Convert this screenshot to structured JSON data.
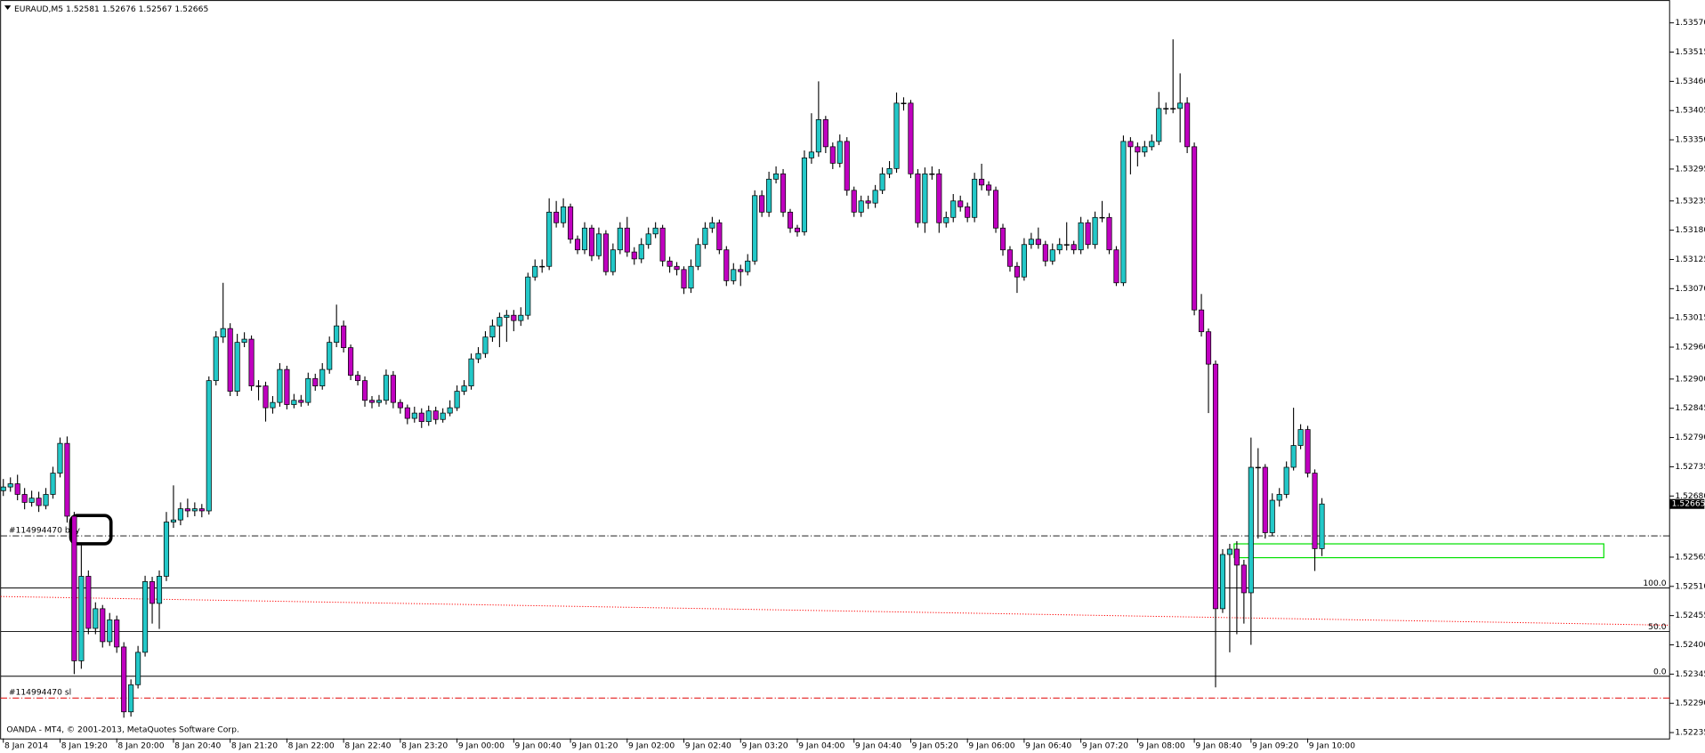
{
  "header": {
    "symbol": "EURAUD,M5"
  },
  "chart_data": {
    "type": "candlestick",
    "categories": [
      "8 Jan 2014",
      null,
      null,
      null,
      null,
      null,
      null,
      null,
      "8 Jan 19:20",
      null,
      null,
      null,
      null,
      null,
      null,
      null,
      "8 Jan 20:00",
      null,
      null,
      null,
      null,
      null,
      null,
      null,
      "8 Jan 20:40",
      null,
      null,
      null,
      null,
      null,
      null,
      null,
      "8 Jan 21:20",
      null,
      null,
      null,
      null,
      null,
      null,
      null,
      "8 Jan 22:00",
      null,
      null,
      null,
      null,
      null,
      null,
      null,
      "8 Jan 22:40",
      null,
      null,
      null,
      null,
      null,
      null,
      null,
      "8 Jan 23:20",
      null,
      null,
      null,
      null,
      null,
      null,
      null,
      "9 Jan 00:00",
      null,
      null,
      null,
      null,
      null,
      null,
      null,
      "9 Jan 00:40",
      null,
      null,
      null,
      null,
      null,
      null,
      null,
      "9 Jan 01:20",
      null,
      null,
      null,
      null,
      null,
      null,
      null,
      "9 Jan 02:00",
      null,
      null,
      null,
      null,
      null,
      null,
      null,
      "9 Jan 02:40",
      null,
      null,
      null,
      null,
      null,
      null,
      null,
      "9 Jan 03:20",
      null,
      null,
      null,
      null,
      null,
      null,
      null,
      "9 Jan 04:00",
      null,
      null,
      null,
      null,
      null,
      null,
      null,
      "9 Jan 04:40",
      null,
      null,
      null,
      null,
      null,
      null,
      null,
      "9 Jan 05:20",
      null,
      null,
      null,
      null,
      null,
      null,
      null,
      "9 Jan 06:00",
      null,
      null,
      null,
      null,
      null,
      null,
      null,
      "9 Jan 06:40",
      null,
      null,
      null,
      null,
      null,
      null,
      null,
      "9 Jan 07:20",
      null,
      null,
      null,
      null,
      null,
      null,
      null,
      "9 Jan 08:00",
      null,
      null,
      null,
      null,
      null,
      null,
      null,
      "9 Jan 08:40",
      null,
      null,
      null,
      null,
      null,
      null,
      null,
      "9 Jan 09:20",
      null,
      null,
      null,
      null,
      null,
      null,
      null,
      "9 Jan 10:00",
      null,
      null
    ],
    "open": [
      1.5269,
      1.52697,
      1.52703,
      1.52683,
      1.52668,
      1.52676,
      1.52662,
      1.52683,
      1.52723,
      1.52779,
      1.52642,
      1.5237,
      1.52529,
      1.52431,
      1.52468,
      1.52406,
      1.52447,
      1.52396,
      1.52274,
      1.52325,
      1.52386,
      1.52519,
      1.52478,
      1.52529,
      1.52631,
      1.52635,
      1.52656,
      1.52652,
      1.52656,
      1.52652,
      1.52897,
      1.52979,
      1.52995,
      1.52877,
      1.52969,
      1.52975,
      1.52887,
      1.52887,
      1.52846,
      1.52856,
      1.52918,
      1.52852,
      1.5286,
      1.52856,
      1.52901,
      1.52887,
      1.52918,
      1.52969,
      1.53,
      1.52959,
      1.52907,
      1.52897,
      1.5286,
      1.52856,
      1.5286,
      1.52907,
      1.52856,
      1.52846,
      1.52826,
      1.52836,
      1.5282,
      1.5284,
      1.52824,
      1.52836,
      1.52846,
      1.52877,
      1.52887,
      1.52938,
      1.52948,
      1.52979,
      1.53,
      1.53016,
      1.5302,
      1.5301,
      1.5302,
      1.53092,
      1.53112,
      1.53112,
      1.53214,
      1.53194,
      1.53224,
      1.53163,
      1.53143,
      1.53184,
      1.53132,
      1.53173,
      1.53102,
      1.53143,
      1.53184,
      1.53139,
      1.53126,
      1.53153,
      1.53173,
      1.53184,
      1.53122,
      1.53112,
      1.53106,
      1.53071,
      1.53112,
      1.53153,
      1.53184,
      1.53194,
      1.53143,
      1.53085,
      1.53106,
      1.53102,
      1.53122,
      1.53245,
      1.53214,
      1.53276,
      1.53286,
      1.53214,
      1.53184,
      1.53177,
      1.53316,
      1.53327,
      1.53388,
      1.53337,
      1.53306,
      1.53347,
      1.53255,
      1.53214,
      1.53235,
      1.53231,
      1.53255,
      1.53286,
      1.53296,
      1.53419,
      1.53419,
      1.53286,
      1.53194,
      1.53286,
      1.53286,
      1.53194,
      1.53204,
      1.53235,
      1.53224,
      1.53204,
      1.53276,
      1.53265,
      1.53255,
      1.53184,
      1.53143,
      1.53112,
      1.53092,
      1.53153,
      1.53163,
      1.53153,
      1.53122,
      1.53143,
      1.53153,
      1.53153,
      1.53143,
      1.53194,
      1.53153,
      1.53204,
      1.53204,
      1.53143,
      1.53081,
      1.53347,
      1.53337,
      1.53327,
      1.53337,
      1.53347,
      1.53409,
      1.53409,
      1.53409,
      1.53419,
      1.53337,
      1.5303,
      1.52989,
      1.52928,
      1.52468,
      1.5257,
      1.5258,
      1.5255,
      1.52498,
      1.52734,
      1.52734,
      1.52611,
      1.52672,
      1.52683,
      1.52734,
      1.52775,
      1.52805,
      1.52723,
      1.52581
    ],
    "high": [
      1.52712,
      1.52715,
      1.5272,
      1.52695,
      1.5269,
      1.52688,
      1.52695,
      1.52735,
      1.5279,
      1.52792,
      1.5265,
      1.52591,
      1.5254,
      1.5248,
      1.52475,
      1.5246,
      1.52455,
      1.52405,
      1.52335,
      1.52398,
      1.5253,
      1.52528,
      1.5254,
      1.5265,
      1.527,
      1.52668,
      1.52675,
      1.52668,
      1.52665,
      1.52905,
      1.5299,
      1.53081,
      1.53005,
      1.52985,
      1.52988,
      1.52982,
      1.52898,
      1.52895,
      1.52868,
      1.5293,
      1.52925,
      1.52872,
      1.5287,
      1.52912,
      1.5291,
      1.5293,
      1.5298,
      1.5304,
      1.5301,
      1.52965,
      1.52915,
      1.52905,
      1.52868,
      1.5287,
      1.52918,
      1.52915,
      1.52862,
      1.52852,
      1.52848,
      1.52845,
      1.5285,
      1.52848,
      1.52845,
      1.5286,
      1.52888,
      1.52898,
      1.52948,
      1.5296,
      1.5299,
      1.53012,
      1.53025,
      1.5303,
      1.5303,
      1.53035,
      1.531,
      1.53125,
      1.53125,
      1.5324,
      1.53235,
      1.5324,
      1.5323,
      1.5317,
      1.53195,
      1.5319,
      1.53185,
      1.5318,
      1.53155,
      1.53195,
      1.53205,
      1.53148,
      1.53165,
      1.53185,
      1.53195,
      1.5319,
      1.5313,
      1.5312,
      1.53112,
      1.53125,
      1.53165,
      1.53195,
      1.53205,
      1.532,
      1.5315,
      1.53118,
      1.53115,
      1.53135,
      1.53255,
      1.53255,
      1.5329,
      1.533,
      1.53295,
      1.5322,
      1.5319,
      1.5333,
      1.534,
      1.5346,
      1.53395,
      1.53345,
      1.5336,
      1.53355,
      1.53262,
      1.53245,
      1.53245,
      1.53265,
      1.53298,
      1.5331,
      1.53439,
      1.5343,
      1.53425,
      1.53295,
      1.53298,
      1.533,
      1.53295,
      1.53215,
      1.53248,
      1.53245,
      1.53232,
      1.53288,
      1.53305,
      1.53272,
      1.53262,
      1.53192,
      1.5315,
      1.5312,
      1.53165,
      1.53175,
      1.53185,
      1.5316,
      1.53155,
      1.53165,
      1.53195,
      1.5316,
      1.53205,
      1.532,
      1.53215,
      1.53235,
      1.53212,
      1.5315,
      1.53358,
      1.53355,
      1.53345,
      1.53348,
      1.5336,
      1.5344,
      1.5342,
      1.53539,
      1.53475,
      1.5343,
      1.53345,
      1.5306,
      1.52995,
      1.52935,
      1.5258,
      1.5259,
      1.52595,
      1.5256,
      1.5279,
      1.5277,
      1.5274,
      1.52685,
      1.52695,
      1.52745,
      1.52846,
      1.52815,
      1.52812,
      1.5273,
      1.52676
    ],
    "low": [
      1.5268,
      1.52688,
      1.52672,
      1.52655,
      1.5266,
      1.5265,
      1.52655,
      1.52675,
      1.52715,
      1.5263,
      1.52345,
      1.52355,
      1.5242,
      1.5242,
      1.52395,
      1.52398,
      1.52385,
      1.52263,
      1.52265,
      1.52318,
      1.52378,
      1.5244,
      1.5243,
      1.5252,
      1.5262,
      1.52625,
      1.5264,
      1.52642,
      1.5264,
      1.52645,
      1.52888,
      1.52968,
      1.52868,
      1.52868,
      1.5296,
      1.52878,
      1.5286,
      1.5282,
      1.52835,
      1.52848,
      1.52843,
      1.52845,
      1.52848,
      1.5285,
      1.52878,
      1.5288,
      1.5291,
      1.5296,
      1.5295,
      1.52898,
      1.52888,
      1.52848,
      1.52845,
      1.52848,
      1.52852,
      1.52845,
      1.52835,
      1.52815,
      1.52818,
      1.52808,
      1.52812,
      1.52815,
      1.52818,
      1.5283,
      1.5284,
      1.5287,
      1.5288,
      1.5293,
      1.5294,
      1.5297,
      1.5296,
      1.5297,
      1.5299,
      1.53,
      1.53012,
      1.53085,
      1.531,
      1.53105,
      1.53185,
      1.53185,
      1.53155,
      1.53135,
      1.53135,
      1.53122,
      1.53125,
      1.53095,
      1.53095,
      1.53135,
      1.5313,
      1.53115,
      1.53118,
      1.53145,
      1.53165,
      1.53112,
      1.531,
      1.53095,
      1.5306,
      1.53062,
      1.53105,
      1.53145,
      1.53175,
      1.53135,
      1.53075,
      1.53078,
      1.53075,
      1.53095,
      1.53115,
      1.53205,
      1.53205,
      1.53268,
      1.53205,
      1.53175,
      1.53168,
      1.5317,
      1.53305,
      1.53318,
      1.53325,
      1.53295,
      1.53298,
      1.53245,
      1.53205,
      1.53205,
      1.5322,
      1.53222,
      1.53248,
      1.53278,
      1.53288,
      1.53405,
      1.53278,
      1.53185,
      1.53175,
      1.53275,
      1.53175,
      1.53185,
      1.53195,
      1.53215,
      1.53195,
      1.53195,
      1.53255,
      1.53245,
      1.53175,
      1.53132,
      1.53102,
      1.53062,
      1.53085,
      1.53145,
      1.53145,
      1.53112,
      1.53115,
      1.53135,
      1.53142,
      1.53135,
      1.53135,
      1.53145,
      1.53145,
      1.53195,
      1.53135,
      1.53075,
      1.53075,
      1.53285,
      1.533,
      1.53318,
      1.5333,
      1.5334,
      1.53398,
      1.534,
      1.53345,
      1.53325,
      1.5302,
      1.5298,
      1.52836,
      1.5232,
      1.5246,
      1.52386,
      1.5242,
      1.5244,
      1.524,
      1.526,
      1.526,
      1.52605,
      1.5266,
      1.52676,
      1.52728,
      1.52768,
      1.52715,
      1.52539,
      1.52567
    ],
    "close": [
      1.52697,
      1.52703,
      1.52683,
      1.52668,
      1.52676,
      1.52662,
      1.52683,
      1.52723,
      1.52779,
      1.52642,
      1.5237,
      1.52529,
      1.52431,
      1.52468,
      1.52406,
      1.52447,
      1.52396,
      1.52274,
      1.52325,
      1.52386,
      1.52519,
      1.52478,
      1.52529,
      1.52631,
      1.52635,
      1.52656,
      1.52652,
      1.52656,
      1.52652,
      1.52897,
      1.52979,
      1.52995,
      1.52877,
      1.52969,
      1.52975,
      1.52887,
      1.52887,
      1.52846,
      1.52856,
      1.52918,
      1.52852,
      1.5286,
      1.52856,
      1.52901,
      1.52887,
      1.52918,
      1.52969,
      1.53,
      1.52959,
      1.52907,
      1.52897,
      1.5286,
      1.52856,
      1.5286,
      1.52907,
      1.52856,
      1.52846,
      1.52826,
      1.52836,
      1.5282,
      1.5284,
      1.52824,
      1.52836,
      1.52846,
      1.52877,
      1.52887,
      1.52938,
      1.52948,
      1.52979,
      1.53,
      1.53016,
      1.5302,
      1.5301,
      1.5302,
      1.53092,
      1.53112,
      1.53112,
      1.53214,
      1.53194,
      1.53224,
      1.53163,
      1.53143,
      1.53184,
      1.53132,
      1.53173,
      1.53102,
      1.53143,
      1.53184,
      1.53139,
      1.53126,
      1.53153,
      1.53173,
      1.53184,
      1.53122,
      1.53112,
      1.53106,
      1.53071,
      1.53112,
      1.53153,
      1.53184,
      1.53194,
      1.53143,
      1.53085,
      1.53106,
      1.53102,
      1.53122,
      1.53245,
      1.53214,
      1.53276,
      1.53286,
      1.53214,
      1.53184,
      1.53177,
      1.53316,
      1.53327,
      1.53388,
      1.53337,
      1.53306,
      1.53347,
      1.53255,
      1.53214,
      1.53235,
      1.53231,
      1.53255,
      1.53286,
      1.53296,
      1.53419,
      1.53419,
      1.53286,
      1.53194,
      1.53286,
      1.53286,
      1.53194,
      1.53204,
      1.53235,
      1.53224,
      1.53204,
      1.53276,
      1.53265,
      1.53255,
      1.53184,
      1.53143,
      1.53112,
      1.53092,
      1.53153,
      1.53163,
      1.53153,
      1.53122,
      1.53143,
      1.53153,
      1.53153,
      1.53143,
      1.53194,
      1.53153,
      1.53204,
      1.53204,
      1.53143,
      1.53081,
      1.53347,
      1.53337,
      1.53327,
      1.53337,
      1.53347,
      1.53409,
      1.53409,
      1.53409,
      1.53419,
      1.53337,
      1.5303,
      1.52989,
      1.52928,
      1.52468,
      1.5257,
      1.5258,
      1.5255,
      1.52498,
      1.52734,
      1.52734,
      1.52611,
      1.52672,
      1.52683,
      1.52734,
      1.52775,
      1.52805,
      1.52723,
      1.52581,
      1.52665
    ],
    "up_color": "#23c8c8",
    "down_color": "#c000c0",
    "ylim": [
      1.52224,
      1.53613
    ],
    "yticks": [
      {
        "value": 1.5357,
        "label": "1.53570"
      },
      1.53515,
      {
        "value": 1.5346,
        "label": "1.53460"
      },
      1.53405,
      {
        "value": 1.5335,
        "label": "1.53350"
      },
      1.53295,
      1.53235,
      {
        "value": 1.5318,
        "label": "1.53180"
      },
      1.53125,
      {
        "value": 1.5307,
        "label": "1.53070"
      },
      1.53015,
      {
        "value": 1.5296,
        "label": "1.52960"
      },
      {
        "value": 1.529,
        "label": "1.52900"
      },
      1.52845,
      {
        "value": 1.5279,
        "label": "1.52790"
      },
      1.52735,
      {
        "value": 1.5268,
        "label": "1.52680"
      },
      1.52565,
      {
        "value": 1.5251,
        "label": "1.52510"
      },
      1.52455,
      {
        "value": 1.524,
        "label": "1.52400"
      },
      1.52345,
      {
        "value": 1.5229,
        "label": "1.52290"
      },
      1.52235
    ],
    "levels": [
      {
        "label": "#114994470 buy",
        "value": 1.52605,
        "color": "#000000"
      },
      {
        "label": "#114994470 sl",
        "value": 1.523,
        "color": "#e00000"
      }
    ],
    "fibo": [
      {
        "label": "100.0",
        "value": 1.52507
      },
      {
        "label": "50.0",
        "value": 1.52425
      },
      {
        "label": "0.0",
        "value": 1.52341
      }
    ],
    "ma_line": {
      "color": "#ff0000",
      "values": [
        1.52491,
        1.52437
      ]
    },
    "zone": {
      "color": "#00e000",
      "top": 1.5259,
      "bottom": 1.52564
    }
  },
  "footer": {
    "copyright": "OANDA - MT4, © 2001-2013, MetaQuotes Software Corp."
  }
}
